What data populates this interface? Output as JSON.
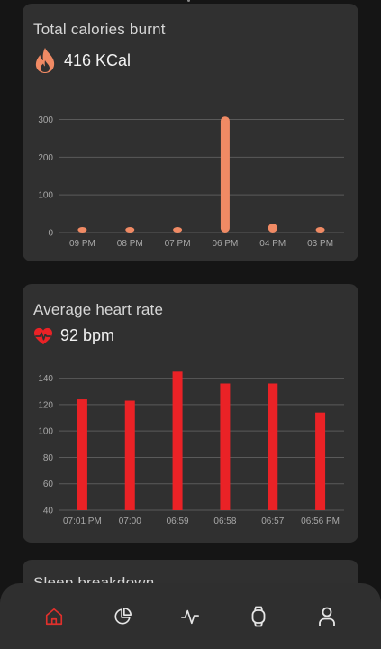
{
  "cards": {
    "calories": {
      "title": "Total calories burnt",
      "value": "416 KCal",
      "icon": "flame-icon",
      "color": "#f08a64"
    },
    "heart": {
      "title": "Average heart rate",
      "value": "92 bpm",
      "icon": "heart-pulse-icon",
      "color": "#ea2226"
    },
    "sleep": {
      "title": "Sleep breakdown"
    }
  },
  "chart_data": [
    {
      "type": "bar",
      "categories": [
        "09 PM",
        "08 PM",
        "07 PM",
        "06 PM",
        "04 PM",
        "03 PM"
      ],
      "values": [
        2,
        14,
        10,
        308,
        24,
        8
      ],
      "yticks": [
        0,
        100,
        200,
        300
      ],
      "ylim": [
        0,
        330
      ],
      "grid": true,
      "color": "#f08a64"
    },
    {
      "type": "bar",
      "categories": [
        "07:01 PM",
        "07:00",
        "06:59",
        "06:58",
        "06:57",
        "06:56 PM"
      ],
      "values": [
        124,
        123,
        145,
        136,
        136,
        114
      ],
      "yticks": [
        40,
        60,
        80,
        100,
        120,
        140
      ],
      "ylim": [
        40,
        150
      ],
      "grid": true,
      "color": "#ea2226"
    }
  ],
  "nav": {
    "items": [
      {
        "name": "home",
        "icon": "home-icon",
        "active": true
      },
      {
        "name": "stats",
        "icon": "pie-chart-icon",
        "active": false
      },
      {
        "name": "activity",
        "icon": "pulse-icon",
        "active": false
      },
      {
        "name": "watch",
        "icon": "watch-icon",
        "active": false
      },
      {
        "name": "profile",
        "icon": "user-icon",
        "active": false
      }
    ],
    "active_color": "#e0302c",
    "inactive_color": "#e6e6e6"
  }
}
